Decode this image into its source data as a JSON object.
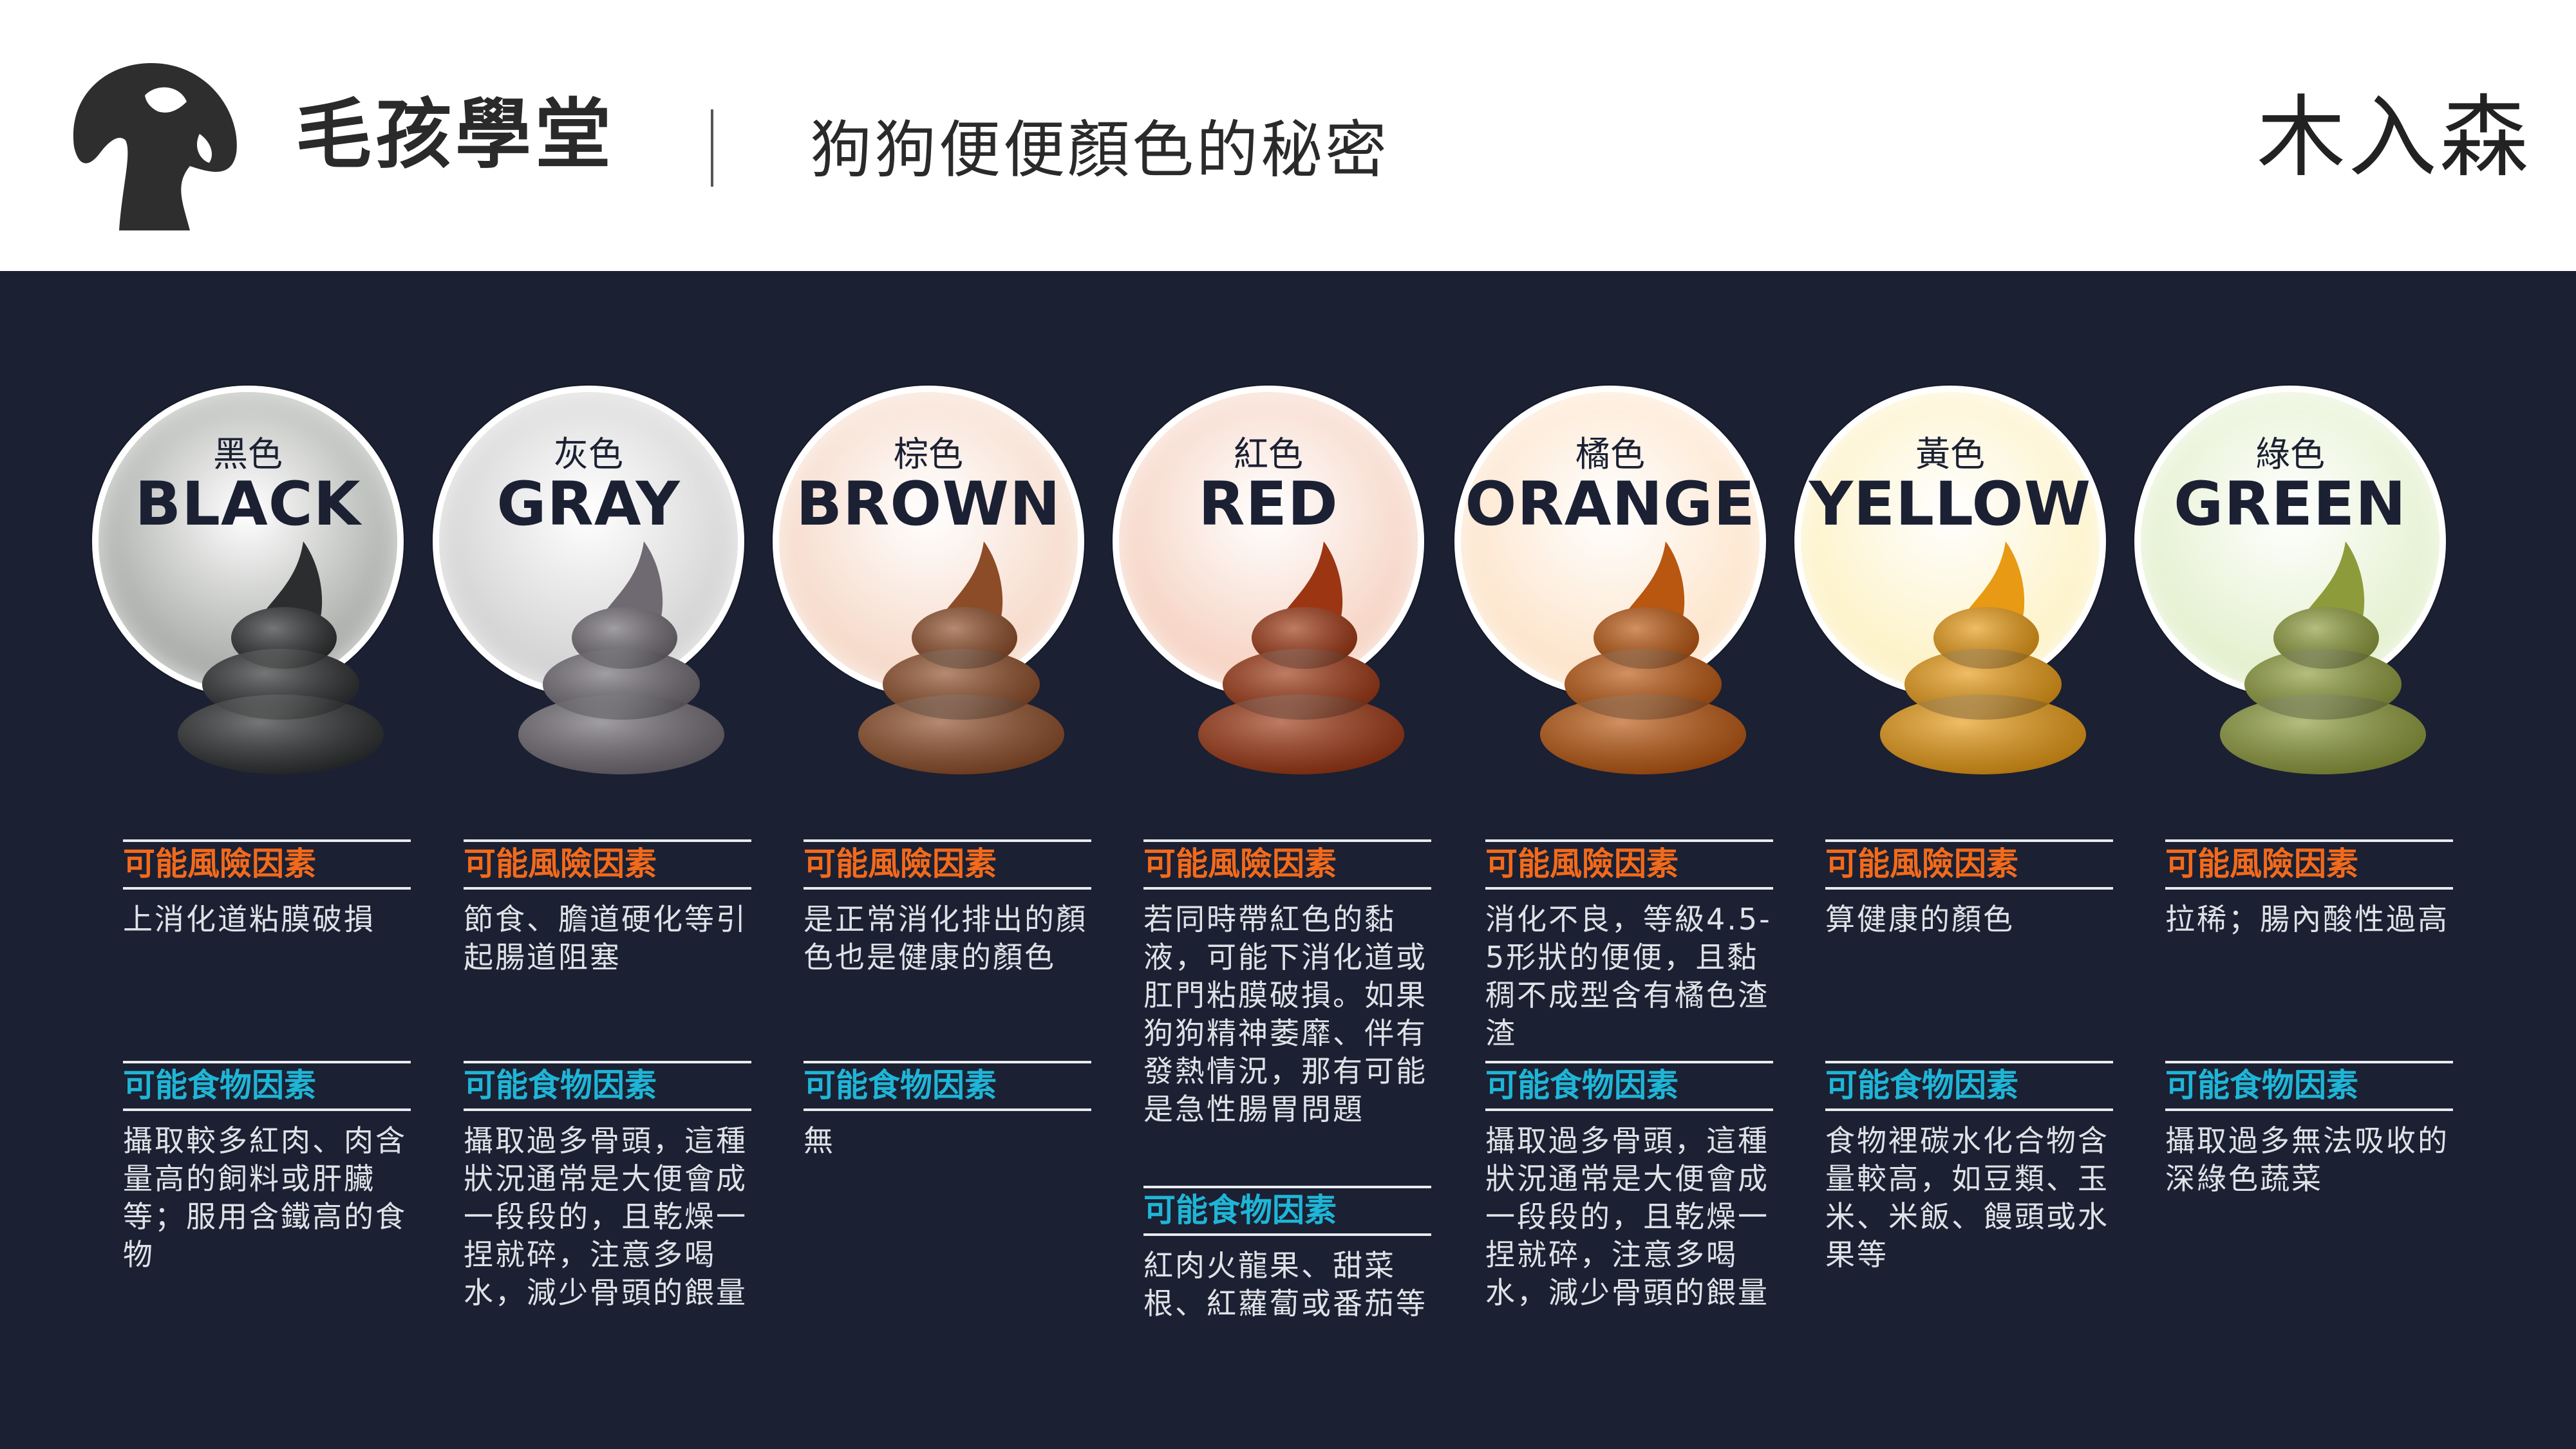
{
  "header": {
    "title": "毛孩學堂",
    "subtitle": "狗狗便便顏色的秘密",
    "brand": "木入森"
  },
  "colors": {
    "risk_heading": "#f26a1b",
    "food_heading": "#1fb5d6",
    "background": "#1b2033"
  },
  "columns": [
    {
      "zh": "黑色",
      "en": "BLACK",
      "circle": "#a8aba7",
      "poop": "#2b2d2e",
      "risk_title": "可能風險因素",
      "risk": "上消化道粘膜破損",
      "food_title": "可能食物因素",
      "food": "攝取較多紅肉、肉含量高的飼料或肝臟等；服用含鐵高的食物"
    },
    {
      "zh": "灰色",
      "en": "GRAY",
      "circle": "#d2d2d2",
      "poop": "#6f6a72",
      "risk_title": "可能風險因素",
      "risk": "節食、膽道硬化等引起腸道阻塞",
      "food_title": "可能食物因素",
      "food": "攝取過多骨頭，這種狀況通常是大便會成一段段的，且乾燥一捏就碎，注意多喝水，減少骨頭的餵量"
    },
    {
      "zh": "棕色",
      "en": "BROWN",
      "circle": "#f6d9c8",
      "poop": "#8c4c27",
      "risk_title": "可能風險因素",
      "risk": "是正常消化排出的顏色也是健康的顏色",
      "food_title": "可能食物因素",
      "food": "無"
    },
    {
      "zh": "紅色",
      "en": "RED",
      "circle": "#f6d3c3",
      "poop": "#9c3612",
      "risk_title": "可能風險因素",
      "risk": "若同時帶紅色的黏液，可能下消化道或肛門粘膜破損。如果狗狗精神萎靡、伴有發熱情況，那有可能是急性腸胃問題",
      "food_title": "可能食物因素",
      "food": "紅肉火龍果、甜菜根、紅蘿蔔或番茄等"
    },
    {
      "zh": "橘色",
      "en": "ORANGE",
      "circle": "#fde4ca",
      "poop": "#b9560f",
      "risk_title": "可能風險因素",
      "risk": "消化不良，等級4.5-5形狀的便便，且黏稠不成型含有橘色渣渣",
      "food_title": "可能食物因素",
      "food": "攝取過多骨頭，這種狀況通常是大便會成一段段的，且乾燥一捏就碎，注意多喝水，減少骨頭的餵量"
    },
    {
      "zh": "黃色",
      "en": "YELLOW",
      "circle": "#fdf2c6",
      "poop": "#e89a14",
      "risk_title": "可能風險因素",
      "risk": "算健康的顏色",
      "food_title": "可能食物因素",
      "food": "食物裡碳水化合物含量較高，如豆類、玉米、米飯、饅頭或水果等"
    },
    {
      "zh": "綠色",
      "en": "GREEN",
      "circle": "#e4f0ce",
      "poop": "#8d9b3b",
      "risk_title": "可能風險因素",
      "risk": "拉稀；腸內酸性過高",
      "food_title": "可能食物因素",
      "food": "攝取過多無法吸收的深綠色蔬菜"
    }
  ]
}
